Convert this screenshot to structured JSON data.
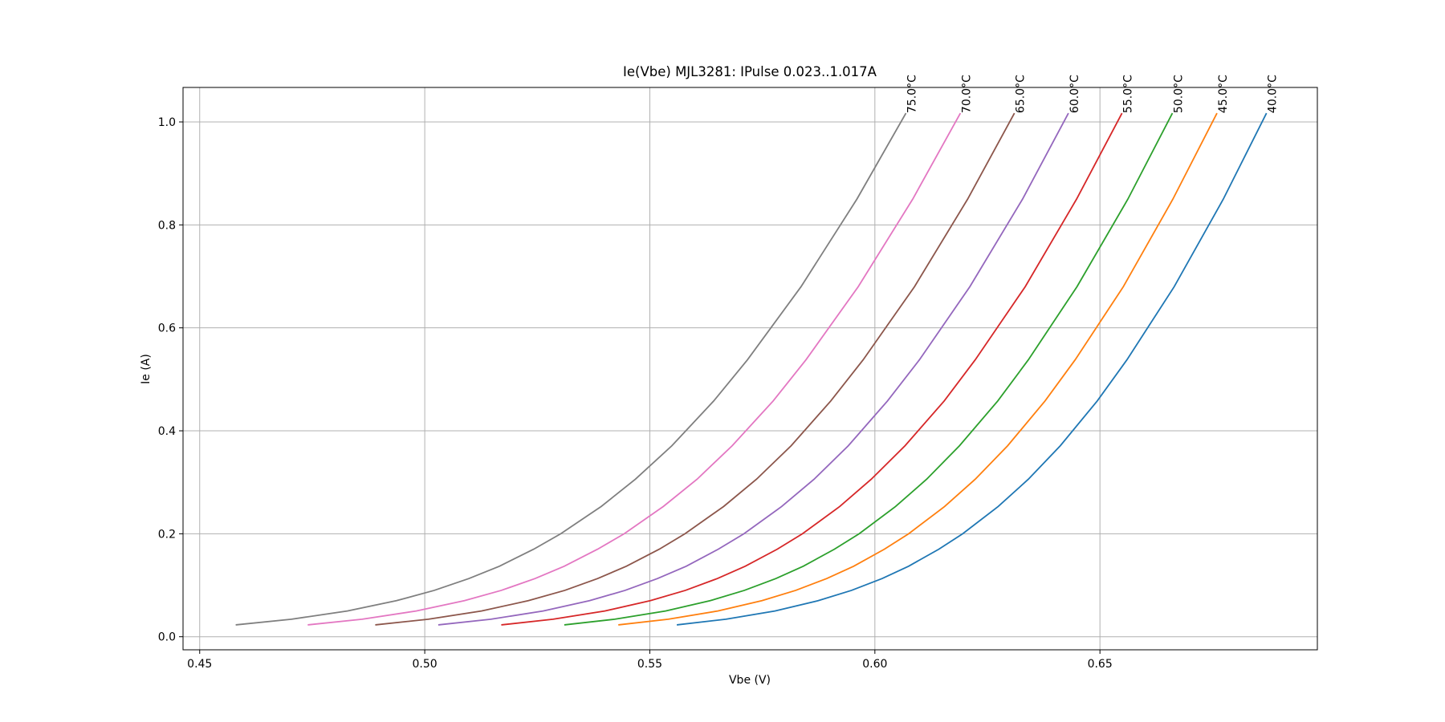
{
  "chart_data": {
    "type": "line",
    "title": "Ie(Vbe) MJL3281: IPulse 0.023..1.017A",
    "x_label": "Vbe (V)",
    "y_label": "Ie (A)",
    "xlim": [
      0.4463,
      0.6983
    ],
    "ylim": [
      -0.0254,
      1.067
    ],
    "xticks": [
      {
        "value": 0.45,
        "label": "0.45"
      },
      {
        "value": 0.5,
        "label": "0.50"
      },
      {
        "value": 0.55,
        "label": "0.55"
      },
      {
        "value": 0.6,
        "label": "0.60"
      },
      {
        "value": 0.65,
        "label": "0.65"
      }
    ],
    "yticks": [
      {
        "value": 0,
        "label": "0.0"
      },
      {
        "value": 0.2,
        "label": "0.2"
      },
      {
        "value": 0.4,
        "label": "0.4"
      },
      {
        "value": 0.6,
        "label": "0.6"
      },
      {
        "value": 0.8,
        "label": "0.8"
      },
      {
        "value": 1,
        "label": "1.0"
      }
    ],
    "grid": true,
    "series": [
      {
        "name": "40.0°C",
        "color": "#1f77b4",
        "x": [
          0.556,
          0.5669,
          0.5778,
          0.5874,
          0.5948,
          0.6016,
          0.6075,
          0.6142,
          0.6195,
          0.6274,
          0.6341,
          0.6412,
          0.6494,
          0.656,
          0.6665,
          0.6774,
          0.687
        ],
        "values": [
          0.023,
          0.034,
          0.05,
          0.07,
          0.09,
          0.113,
          0.137,
          0.17,
          0.2,
          0.253,
          0.306,
          0.371,
          0.458,
          0.538,
          0.68,
          0.85,
          1.017
        ]
      },
      {
        "name": "45.0°C",
        "color": "#ff7f0e",
        "x": [
          0.543,
          0.5541,
          0.5651,
          0.5749,
          0.5824,
          0.5893,
          0.5953,
          0.6021,
          0.6075,
          0.6155,
          0.6223,
          0.6295,
          0.6378,
          0.6445,
          0.6552,
          0.6662,
          0.676
        ],
        "values": [
          0.023,
          0.034,
          0.05,
          0.07,
          0.09,
          0.113,
          0.137,
          0.17,
          0.2,
          0.253,
          0.306,
          0.371,
          0.458,
          0.538,
          0.68,
          0.85,
          1.017
        ]
      },
      {
        "name": "50.0°C",
        "color": "#2ca02c",
        "x": [
          0.531,
          0.5422,
          0.5535,
          0.5634,
          0.571,
          0.578,
          0.5841,
          0.591,
          0.5965,
          0.6046,
          0.6115,
          0.6188,
          0.6273,
          0.6341,
          0.6449,
          0.6562,
          0.6661
        ],
        "values": [
          0.023,
          0.034,
          0.05,
          0.07,
          0.09,
          0.113,
          0.137,
          0.17,
          0.2,
          0.253,
          0.306,
          0.371,
          0.458,
          0.538,
          0.68,
          0.85,
          1.017
        ]
      },
      {
        "name": "55.0°C",
        "color": "#d62728",
        "x": [
          0.517,
          0.5285,
          0.54,
          0.5501,
          0.5579,
          0.565,
          0.5712,
          0.5783,
          0.5839,
          0.5922,
          0.5992,
          0.6067,
          0.6154,
          0.6223,
          0.6334,
          0.6448,
          0.6549
        ],
        "values": [
          0.023,
          0.034,
          0.05,
          0.07,
          0.09,
          0.113,
          0.137,
          0.17,
          0.2,
          0.253,
          0.306,
          0.371,
          0.458,
          0.538,
          0.68,
          0.85,
          1.017
        ]
      },
      {
        "name": "60.0°C",
        "color": "#9467bd",
        "x": [
          0.503,
          0.5147,
          0.5263,
          0.5366,
          0.5445,
          0.5517,
          0.5581,
          0.5652,
          0.5709,
          0.5793,
          0.5865,
          0.5941,
          0.6028,
          0.6099,
          0.6211,
          0.6328,
          0.643
        ],
        "values": [
          0.023,
          0.034,
          0.05,
          0.07,
          0.09,
          0.113,
          0.137,
          0.17,
          0.2,
          0.253,
          0.306,
          0.371,
          0.458,
          0.538,
          0.68,
          0.85,
          1.017
        ]
      },
      {
        "name": "65.0°C",
        "color": "#8c564b",
        "x": [
          0.489,
          0.5008,
          0.5126,
          0.523,
          0.5311,
          0.5384,
          0.5448,
          0.5521,
          0.5578,
          0.5664,
          0.5737,
          0.5814,
          0.5902,
          0.5974,
          0.6088,
          0.6206,
          0.631
        ],
        "values": [
          0.023,
          0.034,
          0.05,
          0.07,
          0.09,
          0.113,
          0.137,
          0.17,
          0.2,
          0.253,
          0.306,
          0.371,
          0.458,
          0.538,
          0.68,
          0.85,
          1.017
        ]
      },
      {
        "name": "70.0°C",
        "color": "#e377c2",
        "x": [
          0.474,
          0.4861,
          0.4981,
          0.5088,
          0.517,
          0.5245,
          0.531,
          0.5384,
          0.5443,
          0.553,
          0.5605,
          0.5683,
          0.5774,
          0.5847,
          0.5963,
          0.6084,
          0.619
        ],
        "values": [
          0.023,
          0.034,
          0.05,
          0.07,
          0.09,
          0.113,
          0.137,
          0.17,
          0.2,
          0.253,
          0.306,
          0.371,
          0.458,
          0.538,
          0.68,
          0.85,
          1.017
        ]
      },
      {
        "name": "75.0°C",
        "color": "#7f7f7f",
        "x": [
          0.458,
          0.4704,
          0.4828,
          0.4937,
          0.5021,
          0.5098,
          0.5166,
          0.5242,
          0.5302,
          0.5392,
          0.5468,
          0.5549,
          0.5642,
          0.5717,
          0.5836,
          0.596,
          0.6069
        ],
        "values": [
          0.023,
          0.034,
          0.05,
          0.07,
          0.09,
          0.113,
          0.137,
          0.17,
          0.2,
          0.253,
          0.306,
          0.371,
          0.458,
          0.538,
          0.68,
          0.85,
          1.017
        ]
      }
    ]
  }
}
